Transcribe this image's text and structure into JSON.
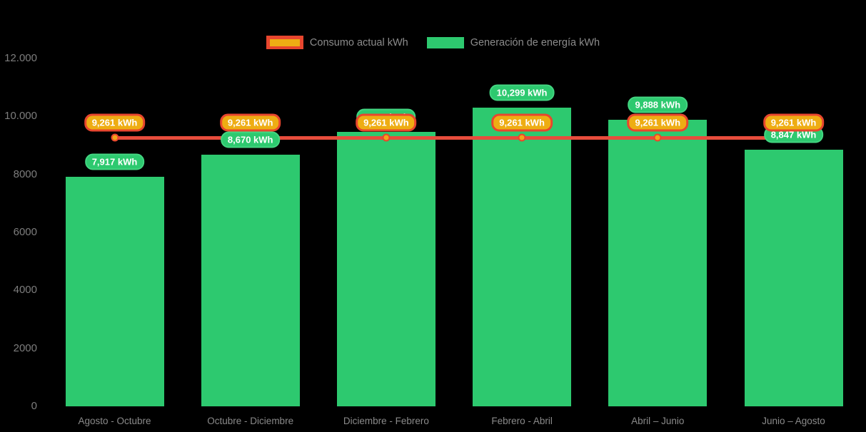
{
  "colors": {
    "background": "#000000",
    "bar_green": "#2dc96f",
    "line_red": "#e74c3c",
    "marker_fill": "#f2a41a",
    "pill_consumo_fill": "#eead13",
    "pill_consumo_border": "#e8462e",
    "pill_generacion_fill": "#2dc96f",
    "text_gray": "#8c8c8c",
    "pill_text": "#ffffff"
  },
  "legend": {
    "consumo_label": "Consumo actual kWh",
    "generacion_label": "Generación de energía kWh"
  },
  "chart_data": {
    "type": "bar",
    "title": "",
    "xlabel": "",
    "ylabel": "",
    "ylim": [
      0,
      12000
    ],
    "grid": false,
    "legend_position": "top-center",
    "categories": [
      "Agosto - Octubre",
      "Octubre - Diciembre",
      "Diciembre - Febrero",
      "Febrero - Abril",
      "Abril – Junio",
      "Junio – Agosto"
    ],
    "y_ticks": [
      {
        "value": 12000,
        "label": "12.000"
      },
      {
        "value": 10000,
        "label": "10.000"
      },
      {
        "value": 8000,
        "label": "8000"
      },
      {
        "value": 6000,
        "label": "6000"
      },
      {
        "value": 4000,
        "label": "4000"
      },
      {
        "value": 2000,
        "label": "2000"
      },
      {
        "value": 0,
        "label": "0"
      }
    ],
    "series": [
      {
        "name": "Generación de energía kWh",
        "type": "bar",
        "color": "#2dc96f",
        "values": [
          7917,
          8670,
          9463,
          10299,
          9888,
          8847
        ],
        "labels": [
          "7,917 kWh",
          "8,670 kWh",
          "9,463 kWh",
          "10,299 kWh",
          "9,888 kWh",
          "8,847 kWh"
        ]
      },
      {
        "name": "Consumo actual kWh",
        "type": "line",
        "color": "#e74c3c",
        "marker_color": "#f2a41a",
        "values": [
          9261,
          9261,
          9261,
          9261,
          9261,
          9261
        ],
        "labels": [
          "9,261 kWh",
          "9,261 kWh",
          "9,261 kWh",
          "9,261 kWh",
          "9,261 kWh",
          "9,261 kWh"
        ]
      }
    ]
  }
}
